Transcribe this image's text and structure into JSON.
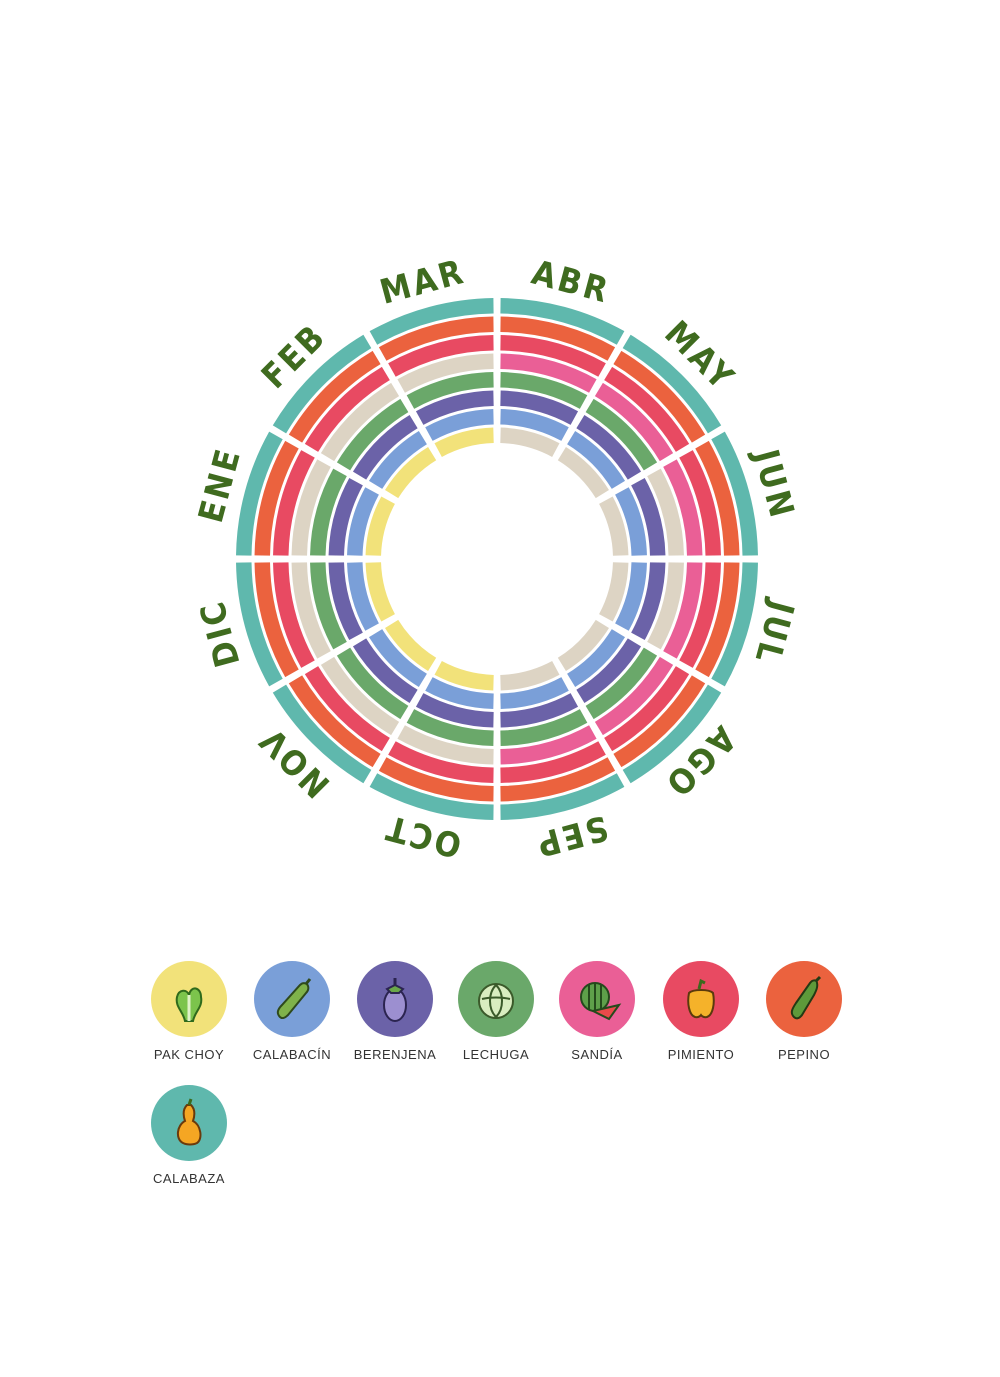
{
  "months": [
    "ENE",
    "FEB",
    "MAR",
    "ABR",
    "MAY",
    "JUN",
    "JUL",
    "AGO",
    "SEP",
    "OCT",
    "NOV",
    "DIC"
  ],
  "crops": [
    {
      "name": "PAK CHOY",
      "color": "#f2e27a",
      "icon": "pak-choy-icon",
      "months": [
        "ENE",
        "FEB",
        "MAR",
        "OCT",
        "NOV",
        "DIC"
      ]
    },
    {
      "name": "CALABACÍN",
      "color": "#7a9fd8",
      "icon": "zucchini-icon",
      "months": [
        "ENE",
        "FEB",
        "MAR",
        "ABR",
        "MAY",
        "JUN",
        "JUL",
        "AGO",
        "SEP",
        "OCT",
        "NOV",
        "DIC"
      ]
    },
    {
      "name": "BERENJENA",
      "color": "#6b62a8",
      "icon": "eggplant-icon",
      "months": [
        "ENE",
        "FEB",
        "MAR",
        "ABR",
        "MAY",
        "JUN",
        "JUL",
        "AGO",
        "SEP",
        "OCT",
        "NOV",
        "DIC"
      ]
    },
    {
      "name": "LECHUGA",
      "color": "#6aa86a",
      "icon": "lettuce-icon",
      "months": [
        "ENE",
        "FEB",
        "MAR",
        "ABR",
        "MAY",
        "AGO",
        "SEP",
        "OCT",
        "NOV",
        "DIC"
      ]
    },
    {
      "name": "SANDÍA",
      "color": "#ea5f96",
      "icon": "watermelon-icon",
      "months": [
        "ABR",
        "MAY",
        "JUN",
        "JUL",
        "AGO",
        "SEP"
      ]
    },
    {
      "name": "PIMIENTO",
      "color": "#e84a62",
      "icon": "pepper-icon",
      "months": [
        "ENE",
        "FEB",
        "MAR",
        "ABR",
        "MAY",
        "JUN",
        "JUL",
        "AGO",
        "SEP",
        "OCT",
        "NOV",
        "DIC"
      ]
    },
    {
      "name": "PEPINO",
      "color": "#eb623e",
      "icon": "cucumber-icon",
      "months": [
        "ENE",
        "FEB",
        "MAR",
        "ABR",
        "MAY",
        "JUN",
        "JUL",
        "AGO",
        "SEP",
        "OCT",
        "NOV",
        "DIC"
      ]
    },
    {
      "name": "CALABAZA",
      "color": "#5fb8ad",
      "icon": "pumpkin-icon",
      "months": [
        "ENE",
        "FEB",
        "MAR",
        "ABR",
        "MAY",
        "JUN",
        "JUL",
        "AGO",
        "SEP",
        "OCT",
        "NOV",
        "DIC"
      ]
    }
  ],
  "empty_color": "#ddd4c4"
}
